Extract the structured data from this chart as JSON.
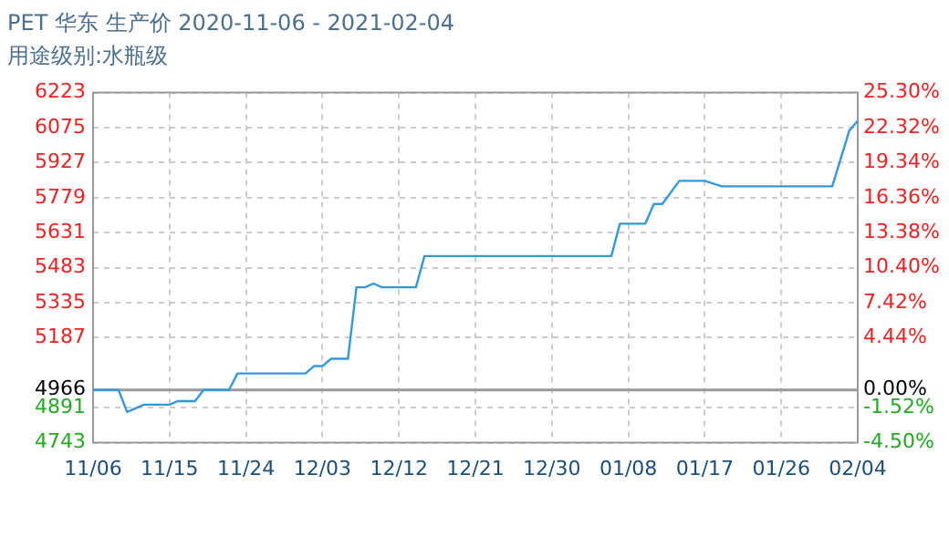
{
  "chart_data": {
    "type": "line",
    "title": "PET 华东 生产价 2020-11-06 - 2021-02-04",
    "subtitle": "用途级别:水瓶级",
    "x": [
      "2020-11-06",
      "2020-11-09",
      "2020-11-10",
      "2020-11-12",
      "2020-11-15",
      "2020-11-16",
      "2020-11-18",
      "2020-11-19",
      "2020-11-22",
      "2020-11-23",
      "2020-12-01",
      "2020-12-02",
      "2020-12-03",
      "2020-12-04",
      "2020-12-06",
      "2020-12-07",
      "2020-12-08",
      "2020-12-09",
      "2020-12-10",
      "2020-12-14",
      "2020-12-15",
      "2021-01-06",
      "2021-01-07",
      "2021-01-10",
      "2021-01-11",
      "2021-01-12",
      "2021-01-14",
      "2021-01-17",
      "2021-01-19",
      "2021-02-01",
      "2021-02-03",
      "2021-02-04"
    ],
    "series": [
      {
        "color": "#3399dd",
        "values": [
          4966,
          4966,
          4873,
          4904,
          4904,
          4919,
          4919,
          4966,
          4966,
          5036,
          5036,
          5067,
          5067,
          5098,
          5098,
          5400,
          5400,
          5416,
          5400,
          5400,
          5532,
          5532,
          5669,
          5669,
          5752,
          5752,
          5850,
          5850,
          5827,
          5827,
          6062,
          6104
        ]
      }
    ],
    "xlim": [
      "2020-11-06",
      "2021-02-04"
    ],
    "xticks": [
      {
        "value": "2020-11-06",
        "label": "11/06"
      },
      {
        "value": "2020-11-15",
        "label": "11/15"
      },
      {
        "value": "2020-11-24",
        "label": "11/24"
      },
      {
        "value": "2020-12-03",
        "label": "12/03"
      },
      {
        "value": "2020-12-12",
        "label": "12/12"
      },
      {
        "value": "2020-12-21",
        "label": "12/21"
      },
      {
        "value": "2020-12-30",
        "label": "12/30"
      },
      {
        "value": "2021-01-08",
        "label": "01/08"
      },
      {
        "value": "2021-01-17",
        "label": "01/17"
      },
      {
        "value": "2021-01-26",
        "label": "01/26"
      },
      {
        "value": "2021-02-04",
        "label": "02/04"
      }
    ],
    "ylim": [
      4743,
      6223
    ],
    "yticks": [
      4743,
      4891,
      4966,
      5187,
      5335,
      5483,
      5631,
      5779,
      5927,
      6075,
      6223
    ],
    "y2lim": [
      -4.5,
      25.3
    ],
    "y2ticks": [
      {
        "value": -4.5,
        "label": "-4.50%"
      },
      {
        "value": -1.52,
        "label": "-1.52%"
      },
      {
        "value": 0,
        "label": "0.00%"
      },
      {
        "value": 4.44,
        "label": "4.44%"
      },
      {
        "value": 7.42,
        "label": "7.42%"
      },
      {
        "value": 10.4,
        "label": "10.40%"
      },
      {
        "value": 13.38,
        "label": "13.38%"
      },
      {
        "value": 16.36,
        "label": "16.36%"
      },
      {
        "value": 19.34,
        "label": "19.34%"
      },
      {
        "value": 22.32,
        "label": "22.32%"
      },
      {
        "value": 25.3,
        "label": "25.30%"
      }
    ],
    "ref_lines": [
      {
        "axis": "y",
        "value": 4966,
        "color": "#999999"
      }
    ],
    "grid": true,
    "legend": false,
    "marker": "none",
    "line_style": "solid"
  }
}
